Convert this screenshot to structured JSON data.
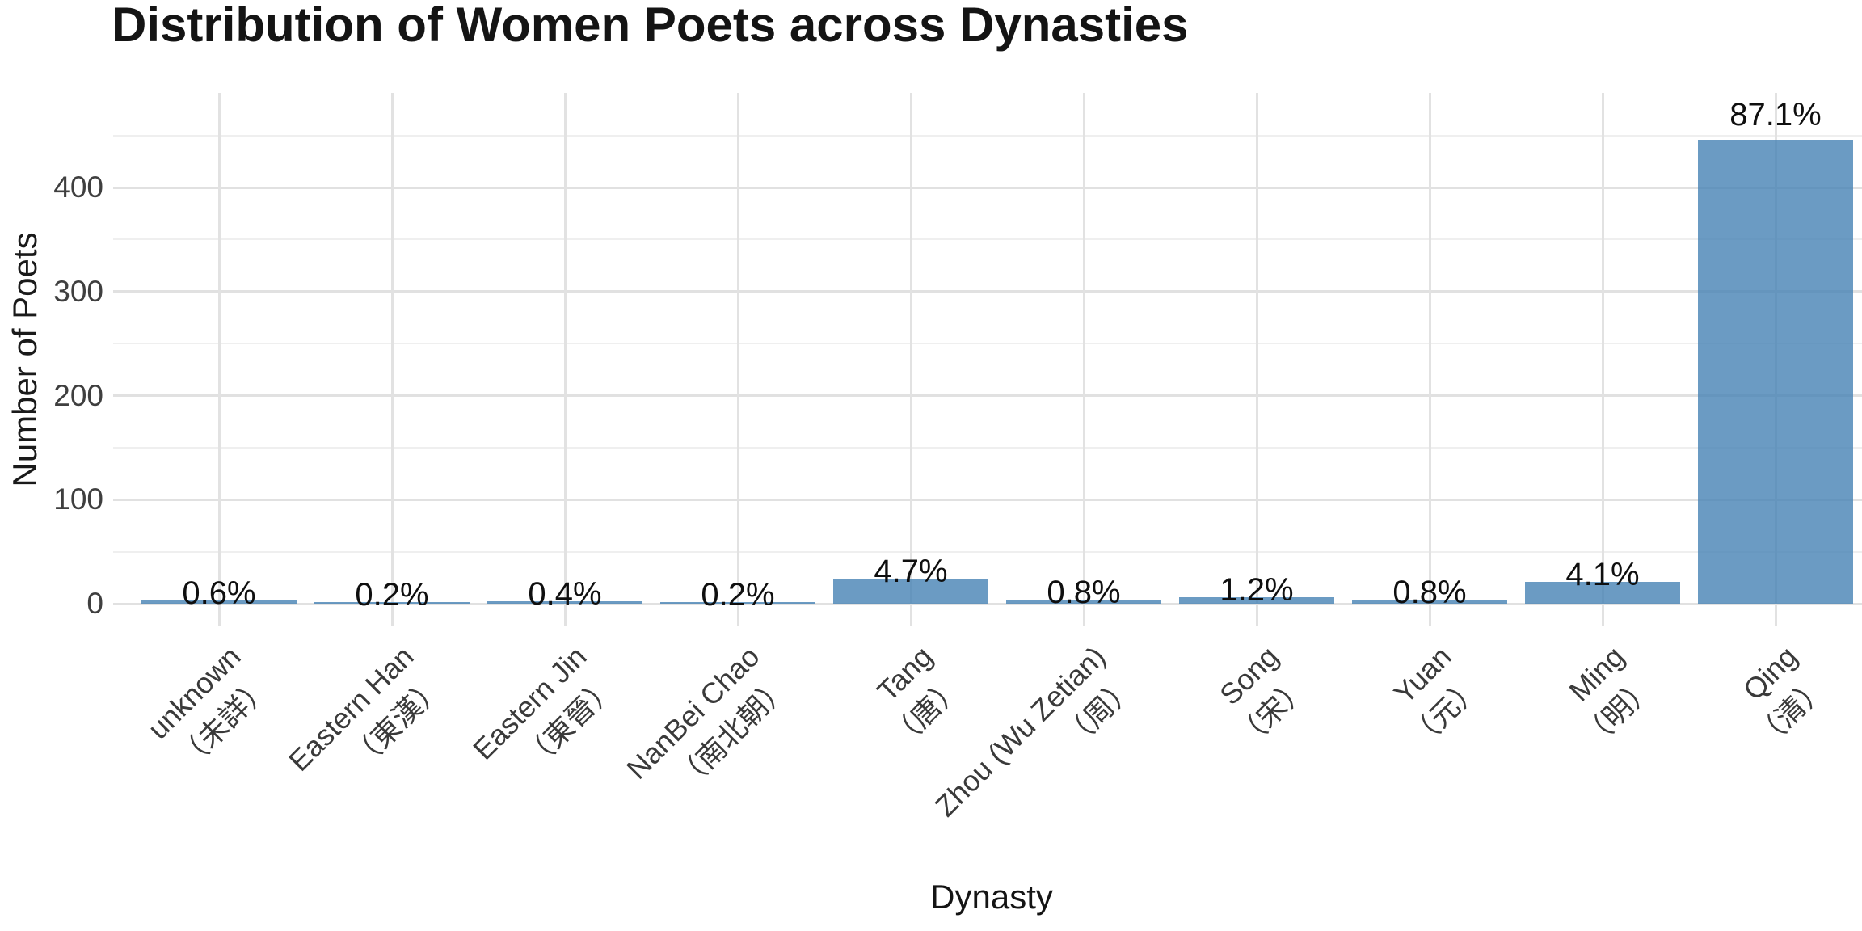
{
  "chart_data": {
    "type": "bar",
    "title": "Distribution of Women Poets across Dynasties",
    "xlabel": "Dynasty",
    "ylabel": "Number of Poets",
    "categories": [
      {
        "en": "unknown",
        "zh": "（未詳）"
      },
      {
        "en": "Eastern Han",
        "zh": "（東漢）"
      },
      {
        "en": "Eastern Jin",
        "zh": "（東晉）"
      },
      {
        "en": "NanBei Chao",
        "zh": "（南北朝）"
      },
      {
        "en": "Tang",
        "zh": "（唐）"
      },
      {
        "en": "Zhou (Wu Zetian)",
        "zh": "（周）"
      },
      {
        "en": "Song",
        "zh": "（宋）"
      },
      {
        "en": "Yuan",
        "zh": "（元）"
      },
      {
        "en": "Ming",
        "zh": "（明）"
      },
      {
        "en": "Qing",
        "zh": "（清）"
      }
    ],
    "values": [
      3,
      1,
      2,
      1,
      24,
      4,
      6,
      4,
      21,
      446
    ],
    "percent_labels": [
      "0.6%",
      "0.2%",
      "0.4%",
      "0.2%",
      "4.7%",
      "0.8%",
      "1.2%",
      "0.8%",
      "4.1%",
      "87.1%"
    ],
    "y_ticks": [
      0,
      100,
      200,
      300,
      400
    ],
    "y_minor_ticks": [
      50,
      150,
      250,
      350,
      450
    ],
    "ylim": [
      0,
      487
    ],
    "grid": "on",
    "legend": "none",
    "bar_fill": "#4682B4",
    "bar_opacity": 0.8,
    "grid_major_color": "#e1e1e1",
    "grid_minor_color": "#efefef"
  }
}
